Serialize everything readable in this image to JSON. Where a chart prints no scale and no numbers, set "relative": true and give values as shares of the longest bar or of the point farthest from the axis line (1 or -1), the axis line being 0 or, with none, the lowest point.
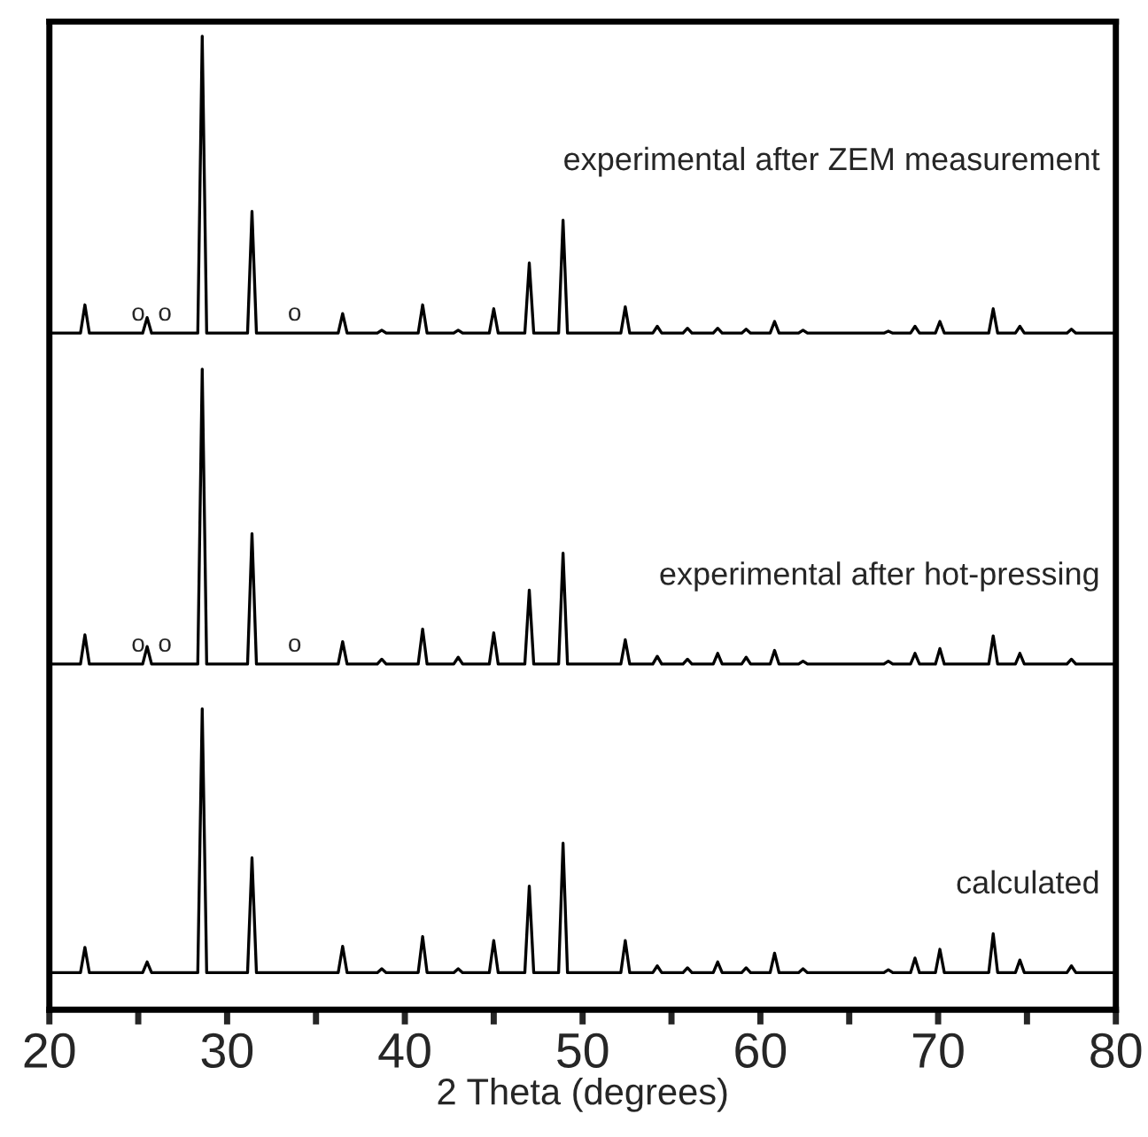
{
  "chart_data": {
    "type": "line",
    "relative": true,
    "xlabel": "2 Theta (degrees)",
    "xlim": [
      20,
      80
    ],
    "xticks": [
      20,
      {
        "value": 25,
        "label": null
      },
      30,
      {
        "value": 35,
        "label": null
      },
      40,
      {
        "value": 45,
        "label": null
      },
      50,
      {
        "value": 55,
        "label": null
      },
      60,
      {
        "value": 65,
        "label": null
      },
      70,
      {
        "value": 75,
        "label": null
      },
      80
    ],
    "grid": false,
    "legend": false,
    "marker": "none",
    "line_style": "solid",
    "x": [
      20,
      21.75,
      22.0,
      22.25,
      25.0,
      25.25,
      25.5,
      25.75,
      26.5,
      28.35,
      28.6,
      28.85,
      31.15,
      31.4,
      31.65,
      33.8,
      36.25,
      36.5,
      36.75,
      38.45,
      38.7,
      38.95,
      40.75,
      41.0,
      41.25,
      42.75,
      43.0,
      43.25,
      44.75,
      45.0,
      45.25,
      46.75,
      47.0,
      47.25,
      48.65,
      48.9,
      49.15,
      52.15,
      52.4,
      52.65,
      53.95,
      54.2,
      54.45,
      55.65,
      55.9,
      56.15,
      57.35,
      57.6,
      57.85,
      58.95,
      59.2,
      59.45,
      60.55,
      60.8,
      61.05,
      62.15,
      62.4,
      62.65,
      66.95,
      67.2,
      67.45,
      68.45,
      68.7,
      68.95,
      69.85,
      70.1,
      70.35,
      72.85,
      73.1,
      73.35,
      74.35,
      74.6,
      74.85,
      77.25,
      77.5,
      77.75,
      80
    ],
    "series": [
      {
        "name": "experimental after ZEM measurement",
        "color": "#000000",
        "values": [
          0.695,
          0.695,
          0.724,
          0.695,
          0.695,
          0.695,
          0.711,
          0.695,
          0.695,
          0.695,
          1.0,
          0.695,
          0.695,
          0.82,
          0.695,
          0.695,
          0.695,
          0.715,
          0.695,
          0.695,
          0.698,
          0.695,
          0.695,
          0.724,
          0.695,
          0.695,
          0.698,
          0.695,
          0.695,
          0.72,
          0.695,
          0.695,
          0.767,
          0.695,
          0.695,
          0.811,
          0.695,
          0.695,
          0.722,
          0.695,
          0.695,
          0.702,
          0.695,
          0.695,
          0.7,
          0.695,
          0.695,
          0.7,
          0.695,
          0.695,
          0.699,
          0.695,
          0.695,
          0.707,
          0.695,
          0.695,
          0.698,
          0.695,
          0.695,
          0.697,
          0.695,
          0.695,
          0.702,
          0.695,
          0.695,
          0.707,
          0.695,
          0.695,
          0.72,
          0.695,
          0.695,
          0.702,
          0.695,
          0.695,
          0.699,
          0.695,
          0.695
        ]
      },
      {
        "name": "experimental after hot-pressing",
        "color": "#000000",
        "values": [
          0.355,
          0.355,
          0.385,
          0.355,
          0.355,
          0.355,
          0.373,
          0.355,
          0.355,
          0.355,
          0.658,
          0.355,
          0.355,
          0.489,
          0.355,
          0.355,
          0.355,
          0.378,
          0.355,
          0.355,
          0.36,
          0.355,
          0.355,
          0.391,
          0.355,
          0.355,
          0.362,
          0.355,
          0.355,
          0.387,
          0.355,
          0.355,
          0.431,
          0.355,
          0.355,
          0.469,
          0.355,
          0.355,
          0.38,
          0.355,
          0.355,
          0.363,
          0.355,
          0.355,
          0.36,
          0.355,
          0.355,
          0.366,
          0.355,
          0.355,
          0.362,
          0.355,
          0.355,
          0.369,
          0.355,
          0.355,
          0.358,
          0.355,
          0.355,
          0.358,
          0.355,
          0.355,
          0.366,
          0.355,
          0.355,
          0.371,
          0.355,
          0.355,
          0.384,
          0.355,
          0.355,
          0.366,
          0.355,
          0.355,
          0.36,
          0.355,
          0.355
        ]
      },
      {
        "name": "calculated",
        "color": "#000000",
        "values": [
          0.038,
          0.038,
          0.064,
          0.038,
          0.038,
          0.038,
          0.049,
          0.038,
          0.038,
          0.038,
          0.309,
          0.038,
          0.038,
          0.156,
          0.038,
          0.038,
          0.038,
          0.065,
          0.038,
          0.038,
          0.042,
          0.038,
          0.038,
          0.075,
          0.038,
          0.038,
          0.042,
          0.038,
          0.038,
          0.071,
          0.038,
          0.038,
          0.127,
          0.038,
          0.038,
          0.171,
          0.038,
          0.038,
          0.071,
          0.038,
          0.038,
          0.045,
          0.038,
          0.038,
          0.043,
          0.038,
          0.038,
          0.049,
          0.038,
          0.038,
          0.043,
          0.038,
          0.038,
          0.058,
          0.038,
          0.038,
          0.042,
          0.038,
          0.038,
          0.041,
          0.038,
          0.038,
          0.053,
          0.038,
          0.038,
          0.062,
          0.038,
          0.038,
          0.078,
          0.038,
          0.038,
          0.051,
          0.038,
          0.038,
          0.045,
          0.038,
          0.038
        ]
      }
    ],
    "annotations": [
      {
        "text": "o",
        "x": 25.0,
        "y": 0.695
      },
      {
        "text": "o",
        "x": 26.5,
        "y": 0.695
      },
      {
        "text": "o",
        "x": 33.8,
        "y": 0.695
      },
      {
        "text": "o",
        "x": 25.0,
        "y": 0.355
      },
      {
        "text": "o",
        "x": 26.5,
        "y": 0.355
      },
      {
        "text": "o",
        "x": 33.8,
        "y": 0.355
      }
    ]
  }
}
